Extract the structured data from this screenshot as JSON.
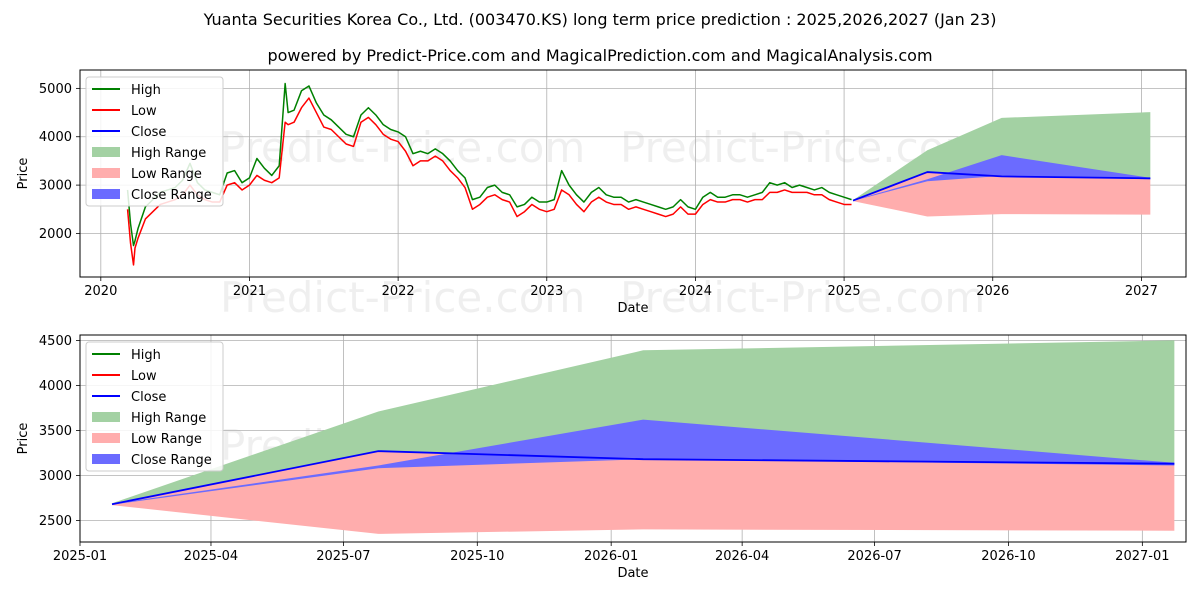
{
  "title": "Yuanta Securities Korea Co., Ltd. (003470.KS) long term price prediction : 2025,2026,2027 (Jan 23)",
  "subtitle": "powered by Predict-Price.com and MagicalPrediction.com and MagicalAnalysis.com",
  "watermark": "Predict-Price.com",
  "colors": {
    "high": "#008000",
    "low": "#ff0000",
    "close": "#0000ff",
    "high_range": "#a3d1a3",
    "low_range": "#ffadad",
    "close_range": "#6b6bff",
    "grid": "#b0b0b0"
  },
  "chart_data": [
    {
      "type": "line",
      "xlabel": "Date",
      "ylabel": "Price",
      "xlim": [
        2019.86,
        2027.3
      ],
      "ylim": [
        1100,
        5380
      ],
      "x_ticks": [
        2020,
        2021,
        2022,
        2023,
        2024,
        2025,
        2026,
        2027
      ],
      "x_tick_labels": [
        "2020",
        "2021",
        "2022",
        "2023",
        "2024",
        "2025",
        "2026",
        "2027"
      ],
      "y_ticks": [
        2000,
        3000,
        4000,
        5000
      ],
      "y_tick_labels": [
        "2000",
        "3000",
        "4000",
        "5000"
      ],
      "grid": true,
      "legend": "top-left",
      "legend_entries": [
        "High",
        "Low",
        "Close",
        "High Range",
        "Low Range",
        "Close Range"
      ],
      "history": {
        "x": [
          2020.18,
          2020.2,
          2020.22,
          2020.23,
          2020.25,
          2020.3,
          2020.35,
          2020.4,
          2020.45,
          2020.5,
          2020.55,
          2020.6,
          2020.65,
          2020.7,
          2020.75,
          2020.8,
          2020.85,
          2020.9,
          2020.95,
          2021.0,
          2021.05,
          2021.1,
          2021.15,
          2021.2,
          2021.24,
          2021.26,
          2021.3,
          2021.35,
          2021.4,
          2021.45,
          2021.5,
          2021.55,
          2021.6,
          2021.65,
          2021.7,
          2021.75,
          2021.8,
          2021.85,
          2021.9,
          2021.95,
          2022.0,
          2022.05,
          2022.1,
          2022.15,
          2022.2,
          2022.25,
          2022.3,
          2022.35,
          2022.4,
          2022.45,
          2022.5,
          2022.55,
          2022.6,
          2022.65,
          2022.7,
          2022.75,
          2022.8,
          2022.85,
          2022.9,
          2022.95,
          2023.0,
          2023.05,
          2023.1,
          2023.15,
          2023.2,
          2023.25,
          2023.3,
          2023.35,
          2023.4,
          2023.45,
          2023.5,
          2023.55,
          2023.6,
          2023.65,
          2023.7,
          2023.75,
          2023.8,
          2023.85,
          2023.9,
          2023.95,
          2024.0,
          2024.05,
          2024.1,
          2024.15,
          2024.2,
          2024.25,
          2024.3,
          2024.35,
          2024.4,
          2024.45,
          2024.5,
          2024.55,
          2024.6,
          2024.65,
          2024.7,
          2024.75,
          2024.8,
          2024.85,
          2024.9,
          2024.95,
          2025.0,
          2025.05
        ],
        "high": [
          2900,
          2200,
          1750,
          1850,
          2100,
          2550,
          2700,
          2850,
          2900,
          2950,
          3100,
          3450,
          3050,
          2900,
          2850,
          2800,
          3250,
          3300,
          3050,
          3150,
          3550,
          3350,
          3200,
          3400,
          5100,
          4500,
          4550,
          4950,
          5050,
          4700,
          4450,
          4350,
          4200,
          4050,
          4000,
          4450,
          4600,
          4450,
          4250,
          4150,
          4100,
          4000,
          3650,
          3700,
          3650,
          3750,
          3650,
          3500,
          3300,
          3150,
          2700,
          2750,
          2950,
          3000,
          2850,
          2800,
          2550,
          2600,
          2750,
          2650,
          2650,
          2700,
          3300,
          3000,
          2800,
          2650,
          2850,
          2950,
          2800,
          2750,
          2750,
          2650,
          2700,
          2650,
          2600,
          2550,
          2500,
          2550,
          2700,
          2550,
          2500,
          2750,
          2850,
          2750,
          2750,
          2800,
          2800,
          2750,
          2800,
          2850,
          3050,
          3000,
          3050,
          2950,
          3000,
          2950,
          2900,
          2950,
          2850,
          2800,
          2750,
          2700
        ],
        "low": [
          2500,
          1800,
          1350,
          1700,
          1900,
          2300,
          2450,
          2600,
          2650,
          2700,
          2800,
          3000,
          2800,
          2700,
          2650,
          2650,
          3000,
          3050,
          2900,
          3000,
          3200,
          3100,
          3050,
          3150,
          4300,
          4250,
          4300,
          4600,
          4800,
          4500,
          4200,
          4150,
          4000,
          3850,
          3800,
          4300,
          4400,
          4250,
          4050,
          3950,
          3900,
          3700,
          3400,
          3500,
          3500,
          3600,
          3500,
          3300,
          3150,
          2950,
          2500,
          2600,
          2750,
          2800,
          2700,
          2650,
          2350,
          2450,
          2600,
          2500,
          2450,
          2500,
          2900,
          2800,
          2600,
          2450,
          2650,
          2750,
          2650,
          2600,
          2600,
          2500,
          2550,
          2500,
          2450,
          2400,
          2350,
          2400,
          2550,
          2400,
          2400,
          2600,
          2700,
          2650,
          2650,
          2700,
          2700,
          2650,
          2700,
          2700,
          2850,
          2850,
          2900,
          2850,
          2850,
          2850,
          2800,
          2800,
          2700,
          2650,
          2600,
          2600
        ]
      },
      "forecast": {
        "x": [
          2025.06,
          2025.56,
          2026.06,
          2027.06
        ],
        "close": [
          2680,
          3270,
          3180,
          3140
        ],
        "high_range": [
          2690,
          3720,
          4390,
          4510
        ],
        "low_range": [
          2670,
          2350,
          2400,
          2390
        ],
        "close_range_upper": [
          2685,
          3120,
          3620,
          3150
        ],
        "close_range_lower": [
          2675,
          3080,
          3190,
          3120
        ]
      }
    },
    {
      "type": "line",
      "xlabel": "Date",
      "ylabel": "Price",
      "xlim": [
        0,
        760
      ],
      "ylim": [
        2260,
        4560
      ],
      "x_ticks": [
        0,
        90,
        181,
        273,
        365,
        455,
        546,
        638,
        730
      ],
      "x_tick_labels": [
        "2025-01",
        "2025-04",
        "2025-07",
        "2025-10",
        "2026-01",
        "2026-04",
        "2026-07",
        "2026-10",
        "2027-01"
      ],
      "y_ticks": [
        2500,
        3000,
        3500,
        4000,
        4500
      ],
      "y_tick_labels": [
        "2500",
        "3000",
        "3500",
        "4000",
        "4500"
      ],
      "grid": true,
      "legend": "top-left",
      "legend_entries": [
        "High",
        "Low",
        "Close",
        "High Range",
        "Low Range",
        "Close Range"
      ],
      "forecast": {
        "x": [
          22,
          205,
          387,
          752
        ],
        "close": [
          2680,
          3270,
          3180,
          3130
        ],
        "high_range": [
          2690,
          3710,
          4390,
          4500
        ],
        "low_range": [
          2670,
          2350,
          2400,
          2385
        ],
        "close_range_upper": [
          2685,
          3110,
          3620,
          3140
        ],
        "close_range_lower": [
          2675,
          3080,
          3180,
          3110
        ]
      }
    }
  ]
}
